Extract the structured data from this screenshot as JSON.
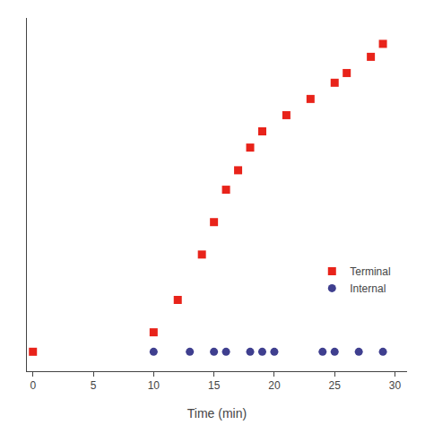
{
  "chart_data": {
    "type": "scatter",
    "xlabel": "Time (min)",
    "series": [
      {
        "name": "Terminal",
        "color": "#e8231a",
        "marker": "square",
        "x": [
          0,
          10,
          12,
          14,
          15,
          16,
          17,
          18,
          19,
          21,
          23,
          25,
          26,
          28,
          29
        ],
        "values": [
          2,
          8,
          18,
          32,
          42,
          52,
          58,
          65,
          70,
          75,
          80,
          85,
          88,
          93,
          97
        ]
      },
      {
        "name": "Internal",
        "color": "#3f3f8f",
        "marker": "circle",
        "x": [
          10,
          13,
          15,
          16,
          18,
          19,
          20,
          24,
          25,
          27,
          29
        ],
        "values": [
          2,
          2,
          2,
          2,
          2,
          2,
          2,
          2,
          2,
          2,
          2
        ]
      }
    ],
    "xlim": [
      -0.5,
      31
    ],
    "xticks": [
      0,
      5,
      10,
      15,
      20,
      25,
      30
    ],
    "ylim": [
      -4,
      105
    ],
    "yticks": [],
    "tick_labels": "x",
    "grid": false,
    "legend": "lower right"
  }
}
